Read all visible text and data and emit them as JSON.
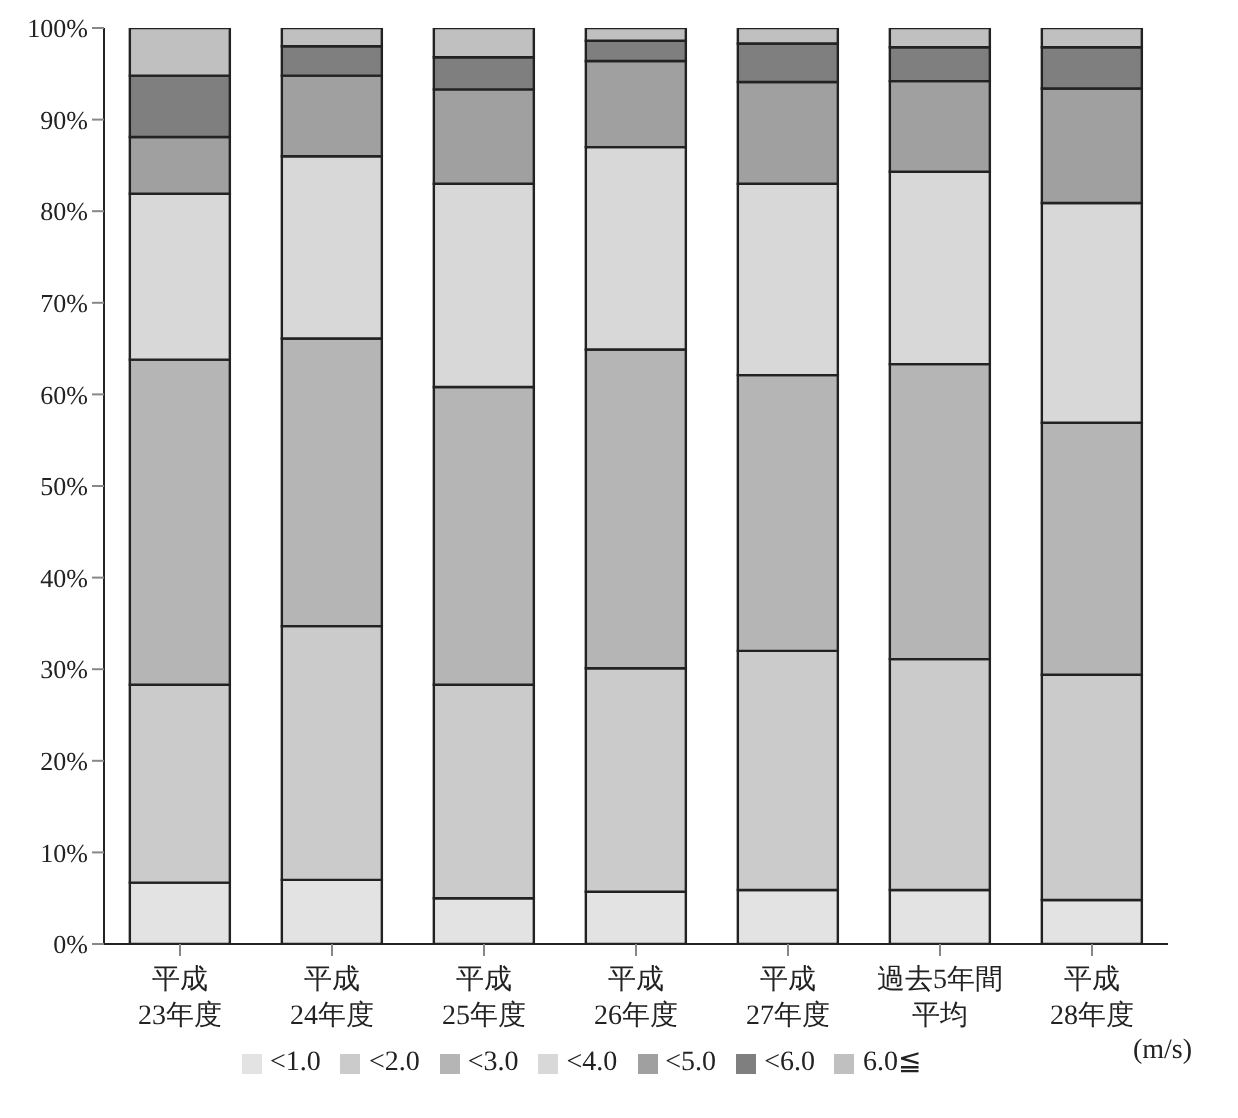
{
  "chart_data": {
    "type": "bar",
    "stacked": true,
    "categories": [
      "平成\n23年度",
      "平成\n24年度",
      "平成\n25年度",
      "平成\n26年度",
      "平成\n27年度",
      "過去5年間平均",
      "平成\n28年度"
    ],
    "series": [
      {
        "name": "<1.0",
        "color": "#e3e3e3",
        "values": [
          6.7,
          7.0,
          5.0,
          5.7,
          5.9,
          5.9,
          4.8
        ]
      },
      {
        "name": "<2.0",
        "color": "#cbcbcb",
        "values": [
          21.6,
          27.7,
          23.3,
          24.4,
          26.1,
          25.2,
          24.6
        ]
      },
      {
        "name": "<3.0",
        "color": "#b5b5b5",
        "values": [
          35.5,
          31.4,
          32.5,
          34.8,
          30.1,
          32.2,
          27.5
        ]
      },
      {
        "name": "<4.0",
        "color": "#d8d8d8",
        "values": [
          18.1,
          19.9,
          22.2,
          22.1,
          20.9,
          21.0,
          24.0
        ]
      },
      {
        "name": "<5.0",
        "color": "#a0a0a0",
        "values": [
          6.2,
          8.8,
          10.3,
          9.4,
          11.1,
          9.9,
          12.5
        ]
      },
      {
        "name": "<6.0",
        "color": "#7f7f7f",
        "values": [
          6.7,
          3.2,
          3.5,
          2.2,
          4.2,
          3.7,
          4.5
        ]
      },
      {
        "name": "6.0≦",
        "color": "#c0c0c0",
        "values": [
          5.2,
          2.0,
          3.2,
          1.4,
          1.7,
          2.1,
          2.1
        ]
      }
    ],
    "legend_title": "(m/s)",
    "ylim": [
      0,
      100
    ],
    "yticks": [
      {
        "value": 0,
        "label": "0%"
      },
      {
        "value": 10,
        "label": "10%"
      },
      {
        "value": 20,
        "label": "20%"
      },
      {
        "value": 30,
        "label": "30%"
      },
      {
        "value": 40,
        "label": "40%"
      },
      {
        "value": 50,
        "label": "50%"
      },
      {
        "value": 60,
        "label": "60%"
      },
      {
        "value": 70,
        "label": "70%"
      },
      {
        "value": 80,
        "label": "80%"
      },
      {
        "value": 90,
        "label": "90%"
      },
      {
        "value": 100,
        "label": "100%"
      }
    ],
    "grid": false,
    "legend": "bottom"
  }
}
